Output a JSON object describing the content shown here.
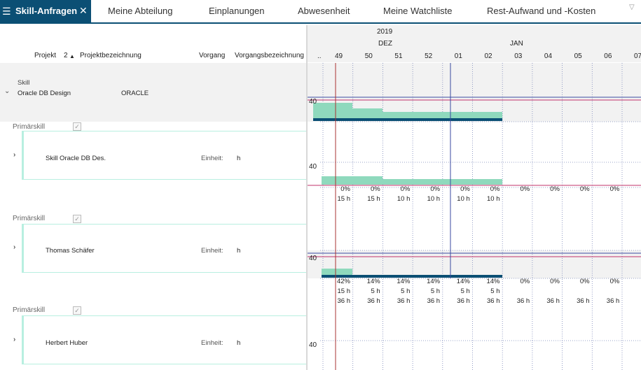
{
  "tabs": {
    "active": "Skill-Anfragen",
    "items": [
      "Meine Abteilung",
      "Einplanungen",
      "Abwesenheit",
      "Meine Watchliste",
      "Rest-Aufwand und -Kosten"
    ]
  },
  "grid": {
    "headers": {
      "projekt": "Projekt",
      "sort_index": "2",
      "projektbezeichnung": "Projektbezeichnung",
      "vorgang": "Vorgang",
      "vorgangsbezeichnung": "Vorgangsbezeichnung"
    },
    "skill": {
      "label": "Skill",
      "name": "Oracle DB Design",
      "code": "ORACLE"
    },
    "primary_label": "Primärskill",
    "unit_label": "Einheit:",
    "unit_value": "h",
    "rows": [
      {
        "name": "Skill Oracle DB Des."
      },
      {
        "name": "Thomas Schäfer"
      },
      {
        "name": "Herbert Huber"
      }
    ]
  },
  "gantt": {
    "year": "2019",
    "months": [
      "DEZ",
      "JAN"
    ],
    "weeks": [
      "49",
      "50",
      "51",
      "52",
      "01",
      "02",
      "03",
      "04",
      "05",
      "06",
      "07"
    ],
    "week_prefix": "..",
    "axis_value": "40",
    "row2": {
      "pct": [
        "0%",
        "0%",
        "0%",
        "0%",
        "0%",
        "0%",
        "0%",
        "0%",
        "0%",
        "0%"
      ],
      "hours": [
        "15 h",
        "15 h",
        "10 h",
        "10 h",
        "10 h",
        "10 h"
      ]
    },
    "row3": {
      "pct": [
        "42%",
        "14%",
        "14%",
        "14%",
        "14%",
        "14%",
        "0%",
        "0%",
        "0%",
        "0%"
      ],
      "hours": [
        "15 h",
        "5 h",
        "5 h",
        "5 h",
        "5 h",
        "5 h"
      ],
      "capacity": [
        "36 h",
        "36 h",
        "36 h",
        "36 h",
        "36 h",
        "36 h",
        "36 h",
        "36 h",
        "36 h",
        "36 h"
      ]
    },
    "colors": {
      "bar": "#8fd9bd",
      "baseline": "#0b4f74",
      "limit": "#c0306a",
      "today": "#a33",
      "accent": "#0b4f74"
    }
  }
}
